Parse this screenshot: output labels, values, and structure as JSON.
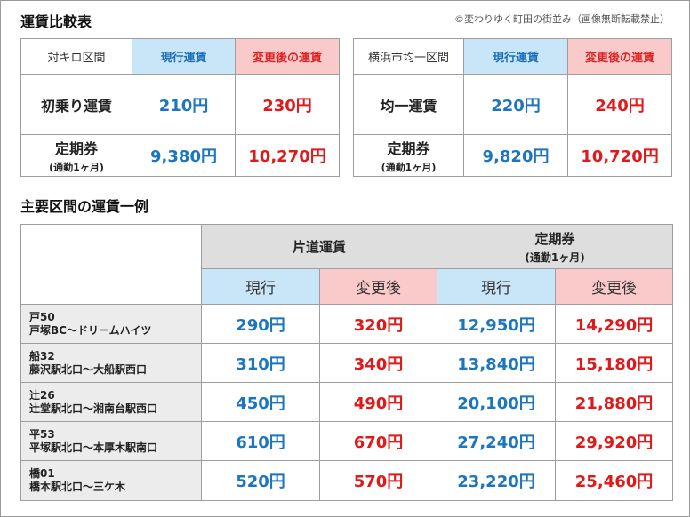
{
  "header": {
    "title": "運賃比較表",
    "copyright": "©変わりゆく町田の街並み（画像無断転載禁止）"
  },
  "comparison_left": {
    "label": "対キロ区間",
    "current_label": "現行運賃",
    "new_label": "変更後の運賃",
    "rows": [
      {
        "label": "初乗り運賃",
        "sublabel": "",
        "current": "210円",
        "new": "230円"
      },
      {
        "label": "定期券",
        "sublabel": "(通勤1ヶ月)",
        "current": "9,380円",
        "new": "10,270円"
      }
    ]
  },
  "comparison_right": {
    "label": "横浜市均一区間",
    "current_label": "現行運賃",
    "new_label": "変更後の運賃",
    "rows": [
      {
        "label": "均一運賃",
        "sublabel": "",
        "current": "220円",
        "new": "240円"
      },
      {
        "label": "定期券",
        "sublabel": "(通勤1ヶ月)",
        "current": "9,820円",
        "new": "10,720円"
      }
    ]
  },
  "examples": {
    "title": "主要区間の運賃一例",
    "oneway_header": "片道運賃",
    "pass_header": "定期券",
    "pass_subheader": "(通勤1ヶ月)",
    "current_label": "現行",
    "new_label": "変更後",
    "rows": [
      {
        "code": "戸50",
        "route": "戸塚BC～ドリームハイツ",
        "oneway_current": "290円",
        "oneway_new": "320円",
        "pass_current": "12,950円",
        "pass_new": "14,290円"
      },
      {
        "code": "船32",
        "route": "藤沢駅北口～大船駅西口",
        "oneway_current": "310円",
        "oneway_new": "340円",
        "pass_current": "13,840円",
        "pass_new": "15,180円"
      },
      {
        "code": "辻26",
        "route": "辻堂駅北口～湘南台駅西口",
        "oneway_current": "450円",
        "oneway_new": "490円",
        "pass_current": "20,100円",
        "pass_new": "21,880円"
      },
      {
        "code": "平53",
        "route": "平塚駅北口～本厚木駅南口",
        "oneway_current": "610円",
        "oneway_new": "670円",
        "pass_current": "27,240円",
        "pass_new": "29,920円"
      },
      {
        "code": "橋01",
        "route": "橋本駅北口～三ケ木",
        "oneway_current": "520円",
        "oneway_new": "570円",
        "pass_current": "23,220円",
        "pass_new": "25,460円"
      }
    ]
  },
  "colors": {
    "current_text": "#1b75c0",
    "new_text": "#e01a1a",
    "current_bg": "#c9e6f9",
    "new_bg": "#fac9c9",
    "header_gray": "#dedede"
  }
}
